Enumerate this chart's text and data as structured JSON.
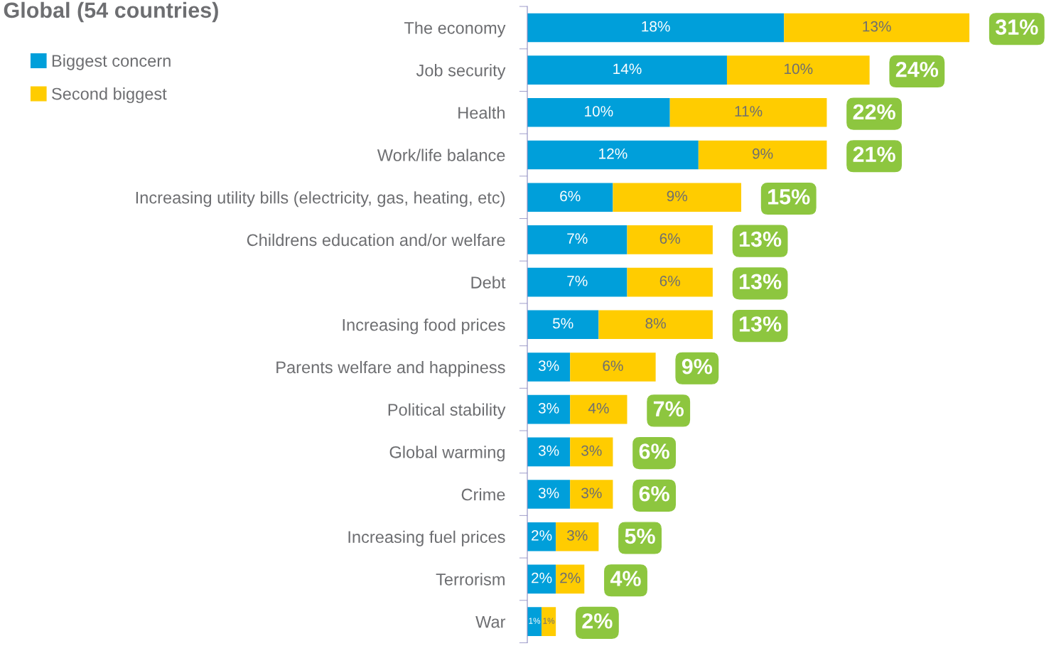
{
  "chart_data": {
    "type": "bar",
    "orientation": "horizontal",
    "stacked": true,
    "title": "Global (54 countries)",
    "categories": [
      "The economy",
      "Job security",
      "Health",
      "Work/life balance",
      "Increasing utility bills (electricity, gas, heating, etc)",
      "Childrens education and/or welfare",
      "Debt",
      "Increasing food prices",
      "Parents welfare and happiness",
      "Political stability",
      "Global warming",
      "Crime",
      "Increasing fuel prices",
      "Terrorism",
      "War"
    ],
    "series": [
      {
        "name": "Biggest concern",
        "color": "#009fda",
        "values": [
          18,
          14,
          10,
          12,
          6,
          7,
          7,
          5,
          3,
          3,
          3,
          3,
          2,
          2,
          1
        ],
        "value_labels": [
          "18%",
          "14%",
          "10%",
          "12%",
          "6%",
          "7%",
          "7%",
          "5%",
          "3%",
          "3%",
          "3%",
          "3%",
          "2%",
          "2%",
          "1%"
        ]
      },
      {
        "name": "Second biggest",
        "color": "#ffcc00",
        "values": [
          13,
          10,
          11,
          9,
          9,
          6,
          6,
          8,
          6,
          4,
          3,
          3,
          3,
          2,
          1
        ],
        "value_labels": [
          "13%",
          "10%",
          "11%",
          "9%",
          "9%",
          "6%",
          "6%",
          "8%",
          "6%",
          "4%",
          "3%",
          "3%",
          "3%",
          "2%",
          "1%"
        ]
      }
    ],
    "totals": [
      "31%",
      "24%",
      "22%",
      "21%",
      "15%",
      "13%",
      "13%",
      "13%",
      "9%",
      "7%",
      "6%",
      "6%",
      "5%",
      "4%",
      "2%"
    ],
    "legend": "top left"
  }
}
